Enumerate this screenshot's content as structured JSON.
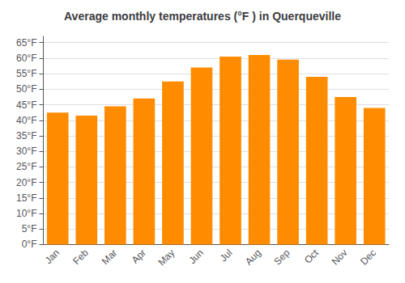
{
  "chart_data": {
    "type": "bar",
    "title": "Average monthly temperatures (°F ) in Querqueville",
    "categories": [
      "Jan",
      "Feb",
      "Mar",
      "Apr",
      "May",
      "Jun",
      "Jul",
      "Aug",
      "Sep",
      "Oct",
      "Nov",
      "Dec"
    ],
    "values": [
      42.5,
      41.5,
      44.5,
      47.0,
      52.5,
      57.0,
      60.5,
      61.0,
      59.5,
      54.0,
      47.5,
      44.0
    ],
    "color": "#FF8C00",
    "ylim": [
      0,
      67
    ],
    "yticks": [
      {
        "value": 0,
        "label": "0°F"
      },
      {
        "value": 5,
        "label": "5°F"
      },
      {
        "value": 10,
        "label": "10°F"
      },
      {
        "value": 15,
        "label": "15°F"
      },
      {
        "value": 20,
        "label": "20°F"
      },
      {
        "value": 25,
        "label": "25°F"
      },
      {
        "value": 30,
        "label": "30°F"
      },
      {
        "value": 35,
        "label": "35°F"
      },
      {
        "value": 40,
        "label": "40°F"
      },
      {
        "value": 45,
        "label": "45°F"
      },
      {
        "value": 50,
        "label": "50°F"
      },
      {
        "value": 55,
        "label": "55°F"
      },
      {
        "value": 60,
        "label": "60°F"
      },
      {
        "value": 65,
        "label": "65°F"
      }
    ],
    "grid": true
  }
}
